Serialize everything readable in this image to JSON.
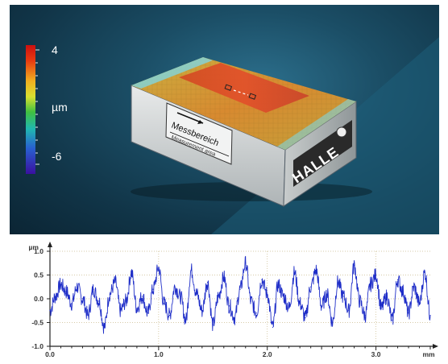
{
  "colorbar": {
    "max_label": "4",
    "unit_label": "µm",
    "min_label": "-6"
  },
  "sample": {
    "area_label_de": "Messbereich",
    "area_label_en": "Measurement area",
    "brand_logo": "HALLE"
  },
  "chart_data": {
    "type": "line",
    "xlabel": "mm",
    "ylabel": "µm",
    "xlim": [
      0.0,
      3.5
    ],
    "ylim": [
      -1.0,
      1.0
    ],
    "xticks": [
      "0.0",
      "1.0",
      "2.0",
      "3.0"
    ],
    "yticks": [
      "1.0",
      "0.5",
      "0.0",
      "-0.5",
      "-1.0"
    ],
    "grid": true,
    "series": [
      {
        "color": "#1f2ec8",
        "x": [
          0.0,
          0.05,
          0.1,
          0.15,
          0.2,
          0.25,
          0.3,
          0.35,
          0.4,
          0.45,
          0.5,
          0.55,
          0.6,
          0.65,
          0.7,
          0.75,
          0.8,
          0.85,
          0.9,
          0.95,
          1.0,
          1.05,
          1.1,
          1.15,
          1.2,
          1.25,
          1.3,
          1.35,
          1.4,
          1.45,
          1.5,
          1.55,
          1.6,
          1.65,
          1.7,
          1.75,
          1.8,
          1.85,
          1.9,
          1.95,
          2.0,
          2.05,
          2.1,
          2.15,
          2.2,
          2.25,
          2.3,
          2.35,
          2.4,
          2.45,
          2.5,
          2.55,
          2.6,
          2.65,
          2.7,
          2.75,
          2.8,
          2.85,
          2.9,
          2.95,
          3.0,
          3.05,
          3.1,
          3.15,
          3.2,
          3.25,
          3.3,
          3.35,
          3.4,
          3.45,
          3.5
        ],
        "y": [
          -0.25,
          0.05,
          0.3,
          0.15,
          -0.1,
          0.25,
          0.0,
          -0.35,
          0.2,
          -0.05,
          -0.6,
          0.1,
          0.35,
          -0.25,
          -0.05,
          0.55,
          -0.2,
          0.05,
          -0.3,
          0.2,
          0.65,
          -0.1,
          -0.35,
          0.25,
          0.05,
          -0.45,
          0.6,
          0.1,
          -0.25,
          0.35,
          -0.55,
          0.05,
          0.45,
          -0.15,
          -0.4,
          0.2,
          0.75,
          -0.05,
          -0.3,
          0.4,
          0.1,
          -0.6,
          0.3,
          0.05,
          -0.2,
          0.55,
          -0.1,
          -0.4,
          0.25,
          0.6,
          -0.15,
          0.1,
          -0.5,
          0.35,
          0.05,
          -0.25,
          0.7,
          -0.05,
          -0.35,
          0.3,
          0.5,
          -0.2,
          0.05,
          -0.45,
          0.4,
          0.15,
          -0.3,
          0.25,
          -0.1,
          0.55,
          -0.35
        ]
      }
    ]
  }
}
